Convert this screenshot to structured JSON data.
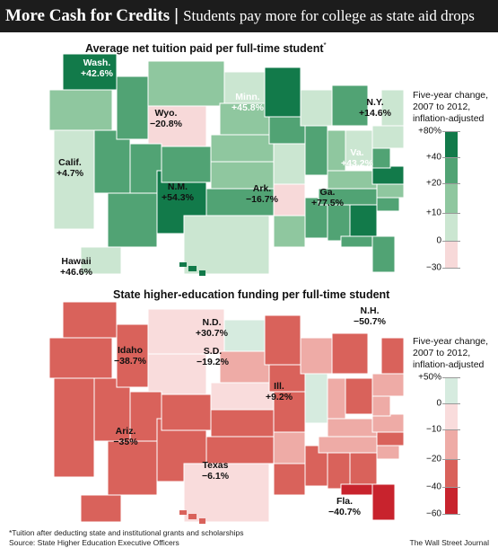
{
  "header": {
    "title": "More Cash for Credits",
    "separator": "|",
    "subtitle": "Students pay more for college as state aid drops"
  },
  "map1": {
    "title": "Average net tuition paid per full-time student",
    "title_marker": "*",
    "legend_title": [
      "Five-year change,",
      "2007 to 2012,",
      "inflation-adjusted"
    ],
    "legend_ticks": [
      "+80%",
      "+40",
      "+20",
      "+10",
      "0",
      "−30"
    ],
    "colors": [
      "#127a4a",
      "#51a374",
      "#8fc79f",
      "#cbe6d1",
      "#f7d9d9"
    ],
    "callouts": [
      {
        "state": "Wash.",
        "value": "+42.6%",
        "tone": "light"
      },
      {
        "state": "Minn.",
        "value": "+45.8%",
        "tone": "light"
      },
      {
        "state": "N.Y.",
        "value": "+14.6%",
        "tone": "dark"
      },
      {
        "state": "Wyo.",
        "value": "−20.8%",
        "tone": "dark"
      },
      {
        "state": "Calif.",
        "value": "+4.7%",
        "tone": "dark"
      },
      {
        "state": "Va.",
        "value": "+43.2%",
        "tone": "light"
      },
      {
        "state": "N.M.",
        "value": "+54.3%",
        "tone": "dark"
      },
      {
        "state": "Ark.",
        "value": "−16.7%",
        "tone": "dark"
      },
      {
        "state": "Ga.",
        "value": "+77.5%",
        "tone": "dark"
      },
      {
        "state": "Hawaii",
        "value": "+46.6%",
        "tone": "dark"
      }
    ]
  },
  "map2": {
    "title": "State higher-education funding per full-time student",
    "legend_title": [
      "Five-year change,",
      "2007 to 2012,",
      "inflation-adjusted"
    ],
    "legend_ticks": [
      "+50%",
      "0",
      "−10",
      "−20",
      "−40",
      "−60"
    ],
    "colors": [
      "#d6ebdf",
      "#f9dcdc",
      "#eeaba6",
      "#d9625b",
      "#c8232d"
    ],
    "callouts": [
      {
        "state": "N.D.",
        "value": "+30.7%",
        "tone": "dark"
      },
      {
        "state": "N.H.",
        "value": "−50.7%",
        "tone": "dark"
      },
      {
        "state": "Idaho",
        "value": "−38.7%",
        "tone": "dark"
      },
      {
        "state": "S.D.",
        "value": "−19.2%",
        "tone": "dark"
      },
      {
        "state": "Ill.",
        "value": "+9.2%",
        "tone": "dark"
      },
      {
        "state": "Ariz.",
        "value": "−35%",
        "tone": "dark"
      },
      {
        "state": "Texas",
        "value": "−6.1%",
        "tone": "dark"
      },
      {
        "state": "Fla.",
        "value": "−40.7%",
        "tone": "dark"
      }
    ]
  },
  "footer": {
    "footnote": "*Tuition after deducting state and institutional grants and scholarships",
    "source": "Source: State Higher Education Executive Officers",
    "credit": "The Wall Street Journal"
  }
}
